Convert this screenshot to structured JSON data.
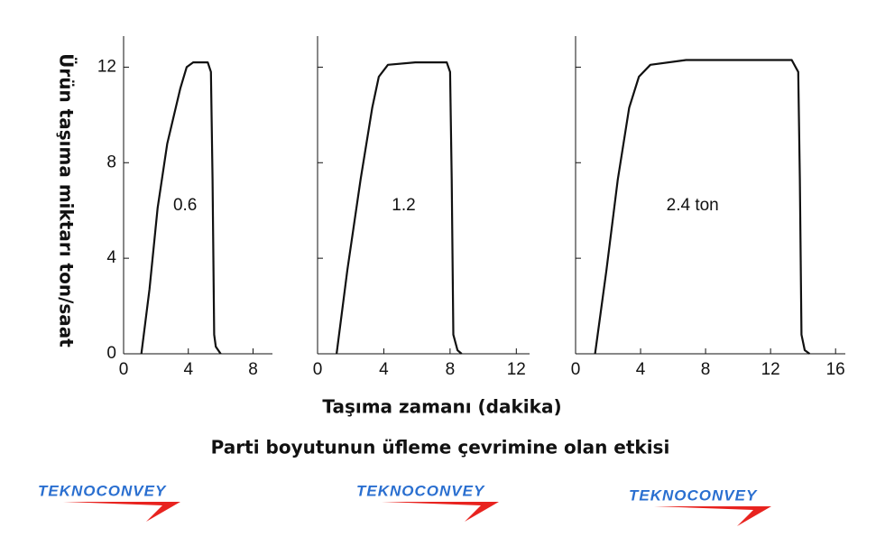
{
  "chart_data": [
    {
      "type": "line",
      "annotation": "0.6",
      "annotation_at": [
        3.8,
        6.2
      ],
      "color": "#111111",
      "x": [
        1.1,
        1.6,
        2.1,
        2.7,
        3.5,
        3.9,
        4.3,
        5.2,
        5.4,
        5.5,
        5.6,
        5.7,
        6.0
      ],
      "values": [
        0,
        2.7,
        6.1,
        8.8,
        11.1,
        12.0,
        12.2,
        12.2,
        11.8,
        7.3,
        0.8,
        0.3,
        0
      ],
      "xlim": [
        0,
        9.2
      ],
      "xticks": [
        0,
        4,
        8
      ],
      "ylim": [
        0,
        13.3
      ],
      "yticks": [
        0,
        4,
        8,
        12
      ],
      "ytick_labels": true
    },
    {
      "type": "line",
      "annotation": "1.2",
      "annotation_at": [
        5.2,
        6.2
      ],
      "color": "#111111",
      "x": [
        1.15,
        1.8,
        2.6,
        3.3,
        3.7,
        4.25,
        5.9,
        7.8,
        8.0,
        8.1,
        8.2,
        8.45,
        8.7
      ],
      "values": [
        0,
        3.5,
        7.3,
        10.3,
        11.6,
        12.1,
        12.2,
        12.2,
        11.8,
        7.3,
        0.8,
        0.15,
        0
      ],
      "xlim": [
        0,
        12.8
      ],
      "xticks": [
        0,
        4,
        8,
        12
      ],
      "ylim": [
        0,
        13.3
      ],
      "yticks": [
        0,
        4,
        8,
        12
      ],
      "ytick_labels": false
    },
    {
      "type": "line",
      "annotation": "2.4 ton",
      "annotation_at": [
        7.2,
        6.2
      ],
      "color": "#111111",
      "x": [
        1.2,
        1.9,
        2.6,
        3.3,
        3.9,
        4.6,
        6.8,
        11.2,
        13.3,
        13.7,
        13.8,
        13.9,
        14.1,
        14.4
      ],
      "values": [
        0,
        3.5,
        7.3,
        10.3,
        11.6,
        12.1,
        12.3,
        12.3,
        12.3,
        11.8,
        7.3,
        0.8,
        0.15,
        0
      ],
      "xlim": [
        0,
        16.6
      ],
      "xticks": [
        0,
        4,
        8,
        12,
        16
      ],
      "ylim": [
        0,
        13.3
      ],
      "yticks": [
        0,
        4,
        8,
        12
      ],
      "ytick_labels": false
    }
  ],
  "y_label": "Ürün taşıma miktarı ton/saat",
  "x_label": "Taşıma zamanı (dakika)",
  "caption": "Parti boyutunun üfleme çevrimine olan etkisi",
  "logos": [
    "TEKNOCONVEY",
    "TEKNOCONVEY",
    "TEKNOCONVEY"
  ]
}
